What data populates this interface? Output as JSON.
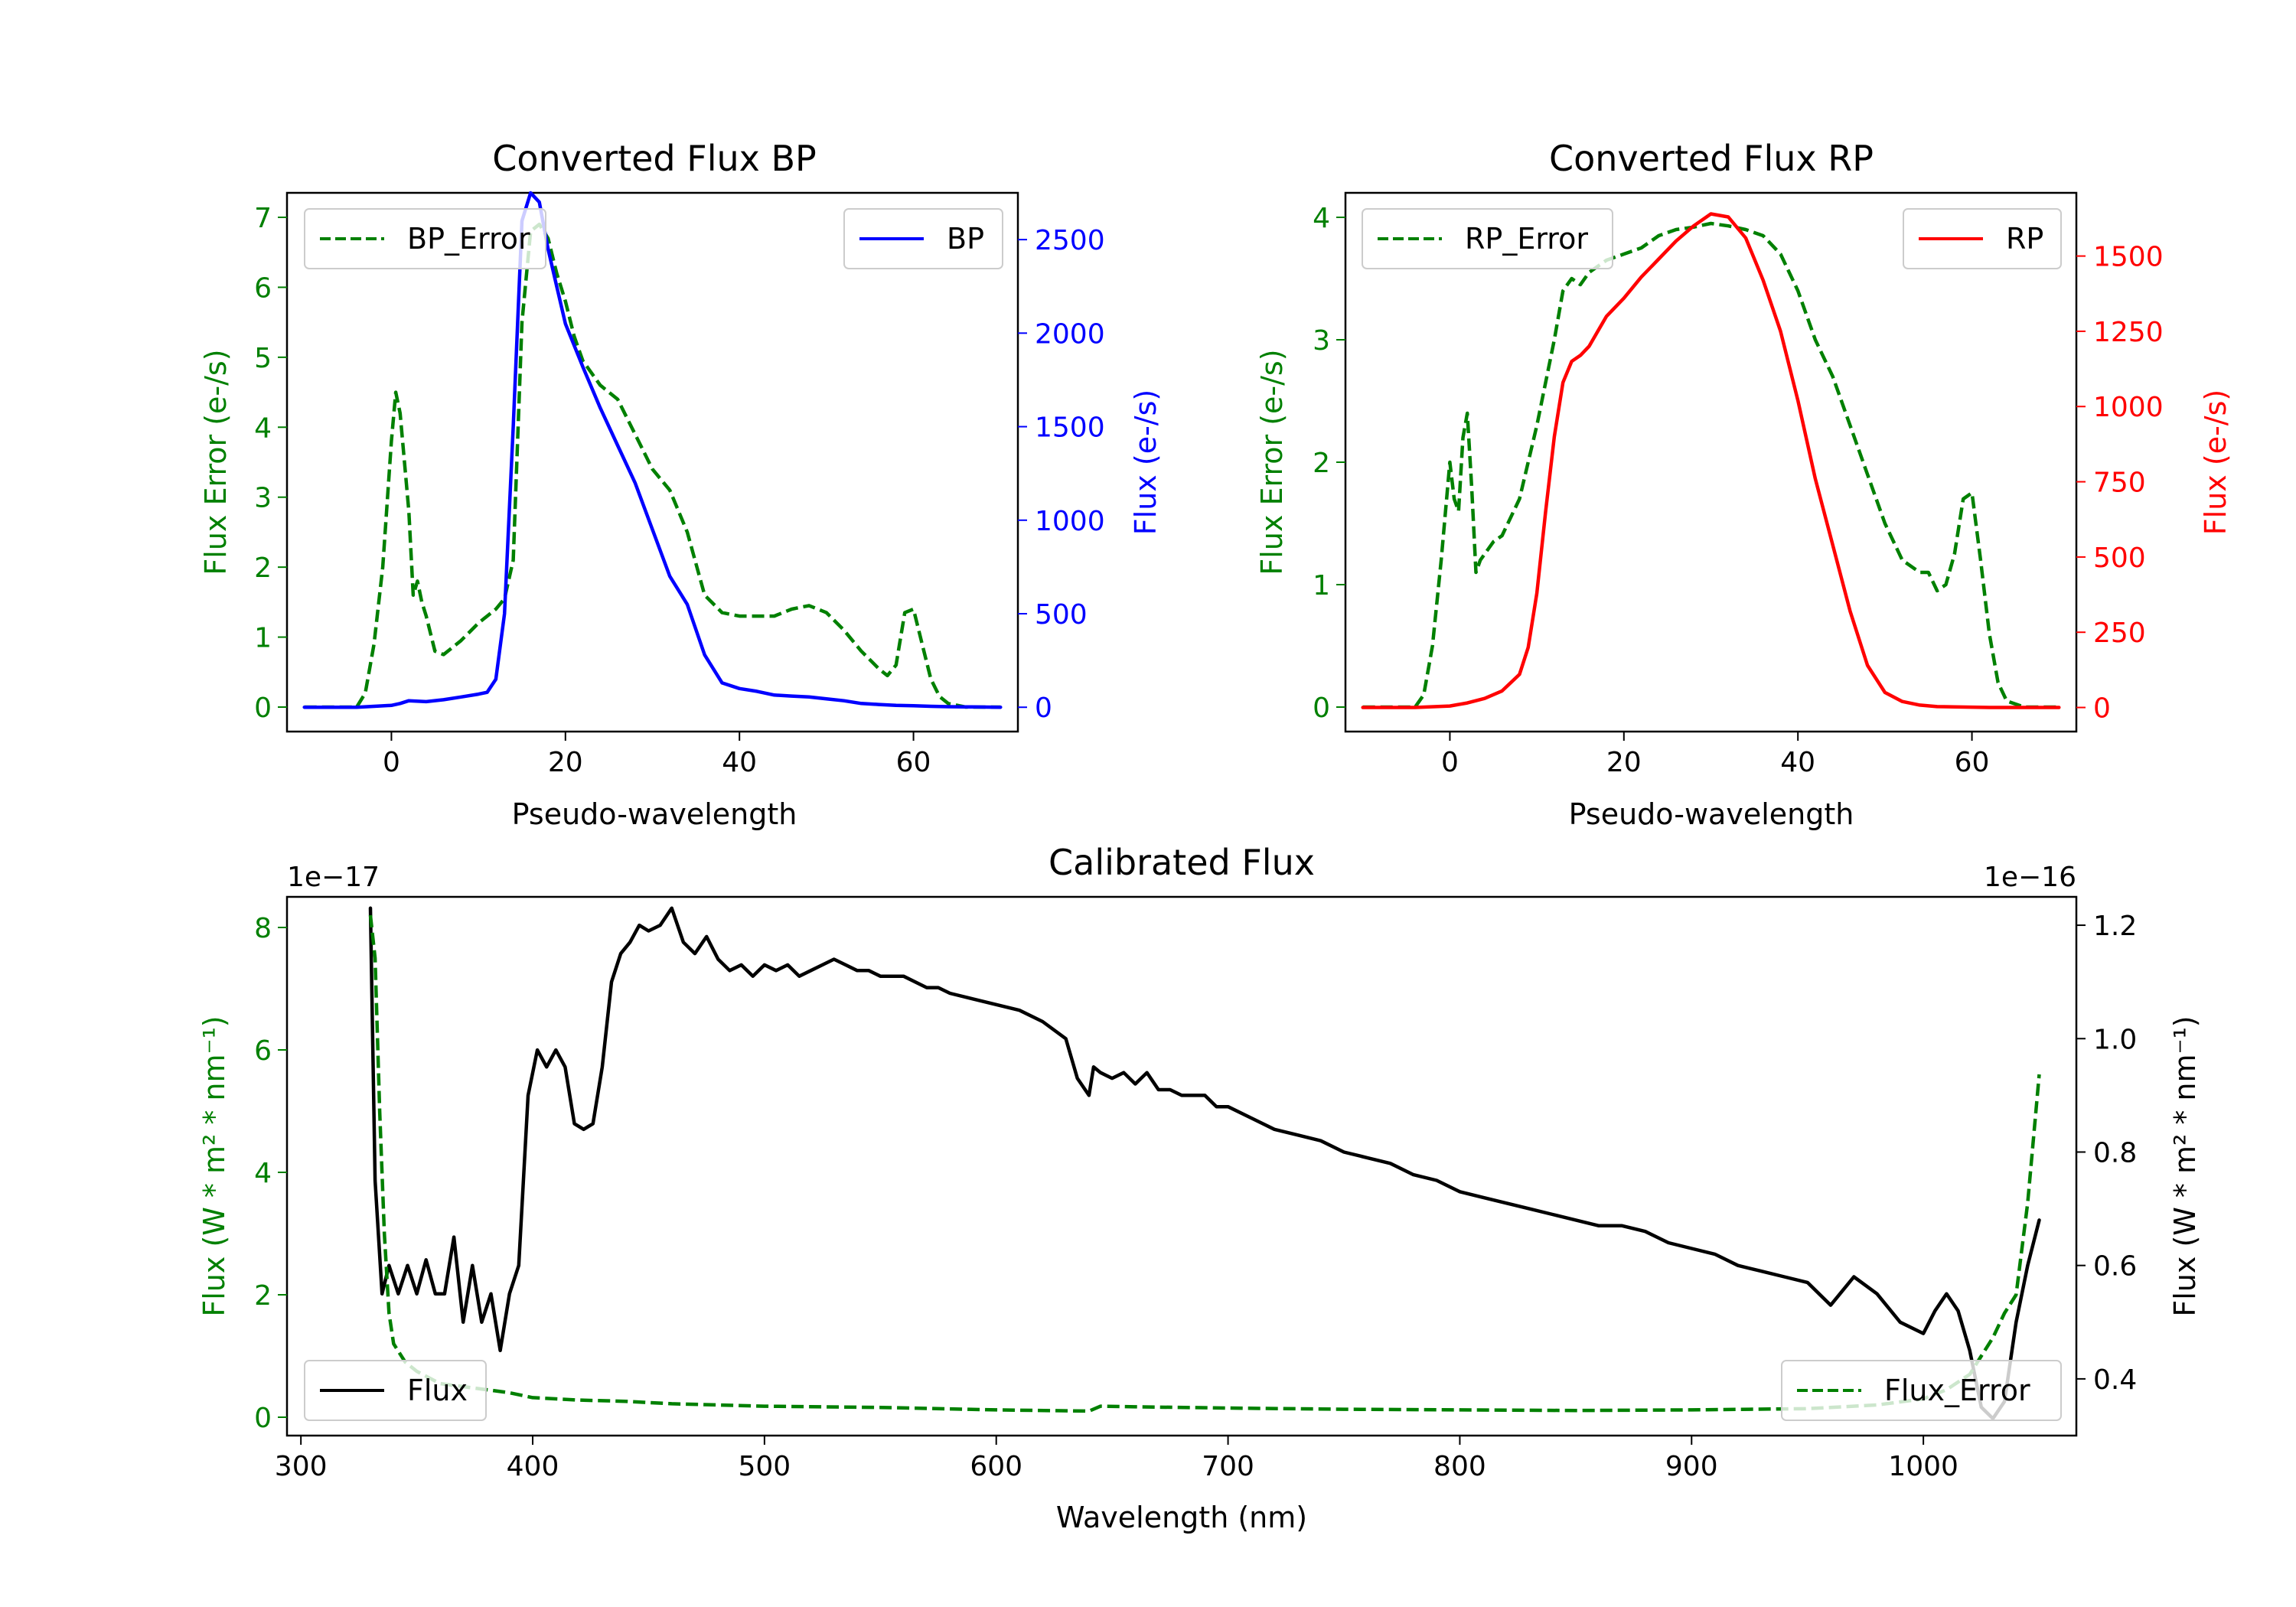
{
  "chart_data": [
    {
      "id": "bp",
      "type": "line",
      "title": "Converted Flux BP",
      "xlabel": "Pseudo-wavelength",
      "ylabel_left": "Flux Error (e-/s)",
      "ylabel_right": "Flux (e-/s)",
      "xlim": [
        -12,
        72
      ],
      "ylim_left": [
        -0.35,
        7.35
      ],
      "ylim_right": [
        -130,
        2750
      ],
      "xticks": [
        0,
        20,
        40,
        60
      ],
      "yticks_left": [
        0,
        1,
        2,
        3,
        4,
        5,
        6,
        7
      ],
      "yticks_right": [
        0,
        500,
        1000,
        1500,
        2000,
        2500
      ],
      "legend_left": {
        "label": "BP_Error",
        "position": "upper-left"
      },
      "legend_right": {
        "label": "BP",
        "position": "upper-right"
      },
      "series": [
        {
          "name": "BP_Error",
          "axis": "left",
          "color": "#008000",
          "dash": true,
          "x": [
            -10,
            -4,
            -3,
            -2,
            -1,
            0,
            0.5,
            1,
            2,
            2.5,
            3,
            3.5,
            4,
            5,
            6,
            8,
            10,
            12,
            13,
            14,
            15,
            16,
            17,
            18,
            19,
            20,
            21,
            22,
            24,
            26,
            28,
            30,
            32,
            34,
            36,
            38,
            40,
            42,
            44,
            46,
            48,
            50,
            52,
            54,
            56,
            57,
            58,
            59,
            60,
            61,
            62,
            63,
            64,
            66,
            70
          ],
          "y": [
            0,
            0,
            0.2,
            0.9,
            2,
            3.8,
            4.5,
            4.2,
            2.8,
            1.6,
            1.8,
            1.5,
            1.3,
            0.8,
            0.75,
            0.95,
            1.2,
            1.4,
            1.55,
            2.1,
            5.5,
            6.8,
            6.9,
            6.7,
            6.2,
            5.8,
            5.3,
            4.95,
            4.6,
            4.4,
            3.9,
            3.4,
            3.1,
            2.5,
            1.6,
            1.35,
            1.3,
            1.3,
            1.3,
            1.4,
            1.45,
            1.35,
            1.1,
            0.8,
            0.55,
            0.45,
            0.6,
            1.35,
            1.4,
            0.9,
            0.4,
            0.15,
            0.05,
            0,
            0
          ]
        },
        {
          "name": "BP",
          "axis": "right",
          "color": "#0000ff",
          "dash": false,
          "x": [
            -10,
            -4,
            0,
            1,
            2,
            4,
            6,
            8,
            10,
            11,
            12,
            13,
            14,
            15,
            16,
            17,
            18,
            19,
            20,
            22,
            24,
            26,
            28,
            30,
            32,
            34,
            36,
            38,
            40,
            42,
            44,
            46,
            48,
            50,
            52,
            54,
            56,
            58,
            60,
            62,
            64,
            66,
            70
          ],
          "y": [
            0,
            0,
            10,
            20,
            35,
            30,
            40,
            55,
            70,
            80,
            150,
            500,
            1500,
            2600,
            2750,
            2700,
            2450,
            2250,
            2050,
            1820,
            1600,
            1400,
            1200,
            950,
            700,
            550,
            280,
            130,
            100,
            85,
            65,
            60,
            55,
            45,
            35,
            20,
            15,
            10,
            8,
            5,
            3,
            2,
            0
          ]
        }
      ]
    },
    {
      "id": "rp",
      "type": "line",
      "title": "Converted Flux RP",
      "xlabel": "Pseudo-wavelength",
      "ylabel_left": "Flux Error (e-/s)",
      "ylabel_right": "Flux (e-/s)",
      "xlim": [
        -12,
        72
      ],
      "ylim_left": [
        -0.2,
        4.2
      ],
      "ylim_right": [
        -80,
        1710
      ],
      "xticks": [
        0,
        20,
        40,
        60
      ],
      "yticks_left": [
        0,
        1,
        2,
        3,
        4
      ],
      "yticks_right": [
        0,
        250,
        500,
        750,
        1000,
        1250,
        1500
      ],
      "legend_left": {
        "label": "RP_Error",
        "position": "upper-left"
      },
      "legend_right": {
        "label": "RP",
        "position": "upper-right"
      },
      "series": [
        {
          "name": "RP_Error",
          "axis": "left",
          "color": "#008000",
          "dash": true,
          "x": [
            -10,
            -4,
            -3,
            -2,
            -1,
            0,
            0.5,
            1,
            1.5,
            2,
            2.5,
            3,
            3.5,
            4,
            5,
            6,
            8,
            10,
            12,
            13,
            14,
            15,
            16,
            17,
            18,
            20,
            22,
            24,
            26,
            28,
            30,
            32,
            34,
            36,
            38,
            40,
            42,
            44,
            46,
            48,
            50,
            52,
            54,
            55,
            56,
            57,
            58,
            59,
            60,
            61,
            62,
            63,
            64,
            66,
            70
          ],
          "y": [
            0,
            0,
            0.1,
            0.5,
            1.2,
            2.0,
            1.7,
            1.6,
            2.2,
            2.4,
            1.8,
            1.1,
            1.2,
            1.25,
            1.35,
            1.4,
            1.7,
            2.3,
            3.0,
            3.4,
            3.5,
            3.45,
            3.55,
            3.6,
            3.65,
            3.7,
            3.75,
            3.85,
            3.9,
            3.92,
            3.95,
            3.93,
            3.9,
            3.85,
            3.7,
            3.4,
            3.0,
            2.7,
            2.3,
            1.9,
            1.5,
            1.2,
            1.1,
            1.1,
            0.95,
            1.0,
            1.25,
            1.7,
            1.75,
            1.2,
            0.6,
            0.2,
            0.05,
            0,
            0
          ]
        },
        {
          "name": "RP",
          "axis": "right",
          "color": "#ff0000",
          "dash": false,
          "x": [
            -10,
            -4,
            0,
            2,
            4,
            6,
            8,
            9,
            10,
            11,
            12,
            13,
            14,
            15,
            16,
            17,
            18,
            20,
            22,
            24,
            26,
            28,
            30,
            32,
            34,
            36,
            38,
            40,
            42,
            44,
            46,
            48,
            50,
            52,
            54,
            56,
            58,
            60,
            62,
            64,
            66,
            70
          ],
          "y": [
            0,
            0,
            5,
            15,
            30,
            55,
            110,
            200,
            380,
            650,
            900,
            1080,
            1150,
            1170,
            1200,
            1250,
            1300,
            1360,
            1430,
            1490,
            1550,
            1600,
            1640,
            1630,
            1560,
            1420,
            1250,
            1020,
            760,
            540,
            320,
            140,
            50,
            20,
            8,
            3,
            2,
            1,
            0,
            0,
            0,
            0
          ]
        }
      ]
    },
    {
      "id": "cal",
      "type": "line",
      "title": "Calibrated Flux",
      "xlabel": "Wavelength (nm)",
      "ylabel_left": "Flux (W * m² * nm⁻¹)",
      "ylabel_right": "Flux (W * m² * nm⁻¹)",
      "offset_left": "1e−17",
      "offset_right": "1e−16",
      "xlim": [
        294,
        1066
      ],
      "ylim_left": [
        -0.3,
        8.5
      ],
      "ylim_right": [
        0.3,
        1.25
      ],
      "xticks": [
        300,
        400,
        500,
        600,
        700,
        800,
        900,
        1000
      ],
      "yticks_left": [
        0,
        2,
        4,
        6,
        8
      ],
      "yticks_right": [
        0.4,
        0.6,
        0.8,
        1.0,
        1.2
      ],
      "legend_left": {
        "label": "Flux",
        "position": "lower-left"
      },
      "legend_right": {
        "label": "Flux_Error",
        "position": "lower-right"
      },
      "series": [
        {
          "name": "Flux",
          "axis": "right",
          "color": "#000000",
          "dash": false,
          "x": [
            330,
            332,
            335,
            338,
            342,
            346,
            350,
            354,
            358,
            362,
            366,
            370,
            374,
            378,
            382,
            386,
            390,
            394,
            398,
            402,
            406,
            410,
            414,
            418,
            422,
            426,
            430,
            434,
            438,
            442,
            446,
            450,
            455,
            460,
            465,
            470,
            475,
            480,
            485,
            490,
            495,
            500,
            505,
            510,
            515,
            520,
            525,
            530,
            535,
            540,
            545,
            550,
            560,
            570,
            575,
            580,
            590,
            600,
            610,
            620,
            630,
            635,
            640,
            642,
            645,
            650,
            655,
            660,
            665,
            670,
            675,
            680,
            685,
            690,
            695,
            700,
            710,
            720,
            730,
            740,
            750,
            760,
            770,
            780,
            790,
            800,
            810,
            820,
            830,
            840,
            860,
            870,
            880,
            890,
            900,
            910,
            920,
            930,
            940,
            950,
            960,
            970,
            980,
            990,
            1000,
            1005,
            1010,
            1015,
            1020,
            1025,
            1030,
            1035,
            1040,
            1045,
            1050
          ],
          "y": [
            1.23,
            0.75,
            0.55,
            0.6,
            0.55,
            0.6,
            0.55,
            0.61,
            0.55,
            0.55,
            0.65,
            0.5,
            0.6,
            0.5,
            0.55,
            0.45,
            0.55,
            0.6,
            0.9,
            0.98,
            0.95,
            0.98,
            0.95,
            0.85,
            0.84,
            0.85,
            0.95,
            1.1,
            1.15,
            1.17,
            1.2,
            1.19,
            1.2,
            1.23,
            1.17,
            1.15,
            1.18,
            1.14,
            1.12,
            1.13,
            1.11,
            1.13,
            1.12,
            1.13,
            1.11,
            1.12,
            1.13,
            1.14,
            1.13,
            1.12,
            1.12,
            1.11,
            1.11,
            1.09,
            1.09,
            1.08,
            1.07,
            1.06,
            1.05,
            1.03,
            1.0,
            0.93,
            0.9,
            0.95,
            0.94,
            0.93,
            0.94,
            0.92,
            0.94,
            0.91,
            0.91,
            0.9,
            0.9,
            0.9,
            0.88,
            0.88,
            0.86,
            0.84,
            0.83,
            0.82,
            0.8,
            0.79,
            0.78,
            0.76,
            0.75,
            0.73,
            0.72,
            0.71,
            0.7,
            0.69,
            0.67,
            0.67,
            0.66,
            0.64,
            0.63,
            0.62,
            0.6,
            0.59,
            0.58,
            0.57,
            0.53,
            0.58,
            0.55,
            0.5,
            0.48,
            0.52,
            0.55,
            0.52,
            0.45,
            0.35,
            0.33,
            0.36,
            0.5,
            0.6,
            0.68
          ]
        },
        {
          "name": "Flux_Error",
          "axis": "left",
          "color": "#008000",
          "dash": true,
          "x": [
            330,
            332,
            334,
            336,
            338,
            340,
            345,
            350,
            355,
            360,
            370,
            380,
            390,
            400,
            420,
            440,
            460,
            480,
            500,
            550,
            600,
            640,
            645,
            660,
            700,
            750,
            800,
            850,
            900,
            950,
            980,
            1000,
            1010,
            1020,
            1025,
            1030,
            1035,
            1040,
            1045,
            1050
          ],
          "y": [
            8.2,
            7.5,
            5.0,
            3.0,
            1.7,
            1.2,
            0.9,
            0.75,
            0.65,
            0.55,
            0.5,
            0.45,
            0.4,
            0.32,
            0.28,
            0.26,
            0.22,
            0.2,
            0.18,
            0.16,
            0.12,
            0.1,
            0.18,
            0.17,
            0.15,
            0.13,
            0.12,
            0.11,
            0.12,
            0.14,
            0.2,
            0.3,
            0.45,
            0.7,
            1.0,
            1.3,
            1.7,
            2.0,
            3.5,
            5.6
          ]
        }
      ]
    }
  ]
}
